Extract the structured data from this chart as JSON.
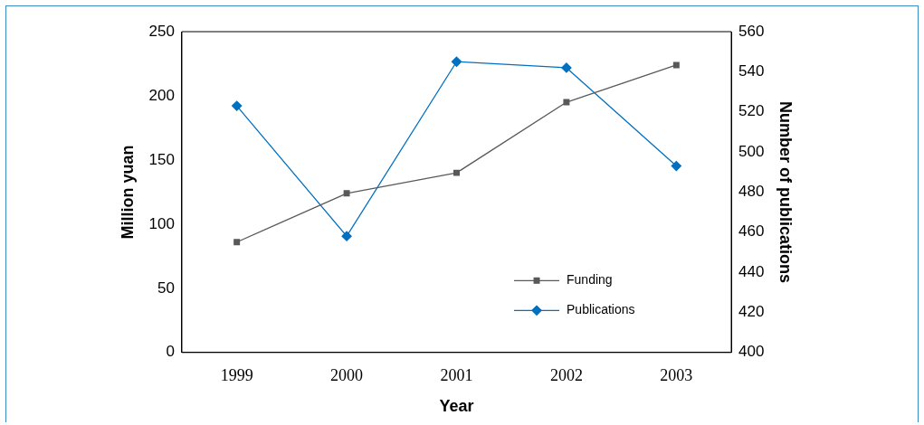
{
  "chart_data": {
    "type": "line",
    "xlabel": "Year",
    "ylabel": "Million yuan",
    "y2label": "Number of publications",
    "categories": [
      "1999",
      "2000",
      "2001",
      "2002",
      "2003"
    ],
    "series": [
      {
        "name": "Funding",
        "color": "#595959",
        "marker": "square",
        "values": [
          86,
          124,
          140,
          195,
          224
        ]
      },
      {
        "name": "Publications",
        "color": "#0070c0",
        "marker": "diamond",
        "axis": "y2",
        "values": [
          523,
          458,
          545,
          542,
          493
        ]
      }
    ],
    "ylim": [
      0,
      250
    ],
    "yticks": [
      0,
      50,
      100,
      150,
      200,
      250
    ],
    "y2lim": [
      400,
      560
    ],
    "y2ticks": [
      400,
      420,
      440,
      460,
      480,
      500,
      520,
      540,
      560
    ],
    "grid": false,
    "legend": "bottom right",
    "line_style": "solid"
  }
}
